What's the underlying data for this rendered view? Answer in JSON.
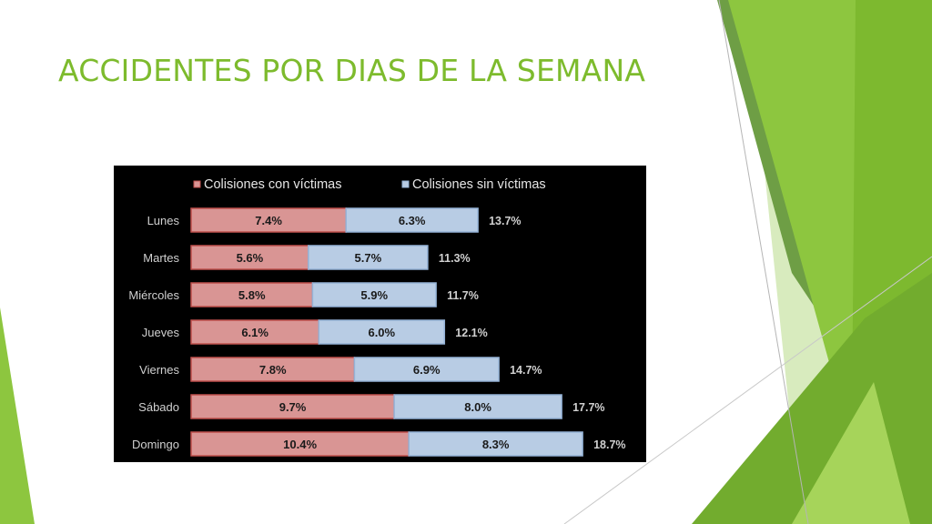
{
  "slide": {
    "title": "ACCIDENTES POR DIAS DE LA SEMANA"
  },
  "colors": {
    "accent": "#7DBB2D",
    "series1_fill": "#D99594",
    "series1_edge": "#C0504D",
    "series2_fill": "#B8CCE4",
    "series2_edge": "#95B3D7"
  },
  "chart_data": {
    "type": "bar",
    "orientation": "horizontal",
    "stacked": true,
    "categories": [
      "Lunes",
      "Martes",
      "Miércoles",
      "Jueves",
      "Viernes",
      "Sábado",
      "Domingo"
    ],
    "series": [
      {
        "name": "Colisiones con víctimas",
        "values": [
          7.4,
          5.6,
          5.8,
          6.1,
          7.8,
          9.7,
          10.4
        ],
        "labels": [
          "7.4%",
          "5.6%",
          "5.8%",
          "6.1%",
          "7.8%",
          "9.7%",
          "10.4%"
        ]
      },
      {
        "name": "Colisiones sin víctimas",
        "values": [
          6.3,
          5.7,
          5.9,
          6.0,
          6.9,
          8.0,
          8.3
        ],
        "labels": [
          "6.3%",
          "5.7%",
          "5.9%",
          "6.0%",
          "6.9%",
          "8.0%",
          "8.3%"
        ]
      }
    ],
    "totals": [
      "13.7%",
      "11.3%",
      "11.7%",
      "12.1%",
      "14.7%",
      "17.7%",
      "18.7%"
    ],
    "xlim": [
      0,
      20
    ],
    "legend": "top",
    "grid": false
  }
}
